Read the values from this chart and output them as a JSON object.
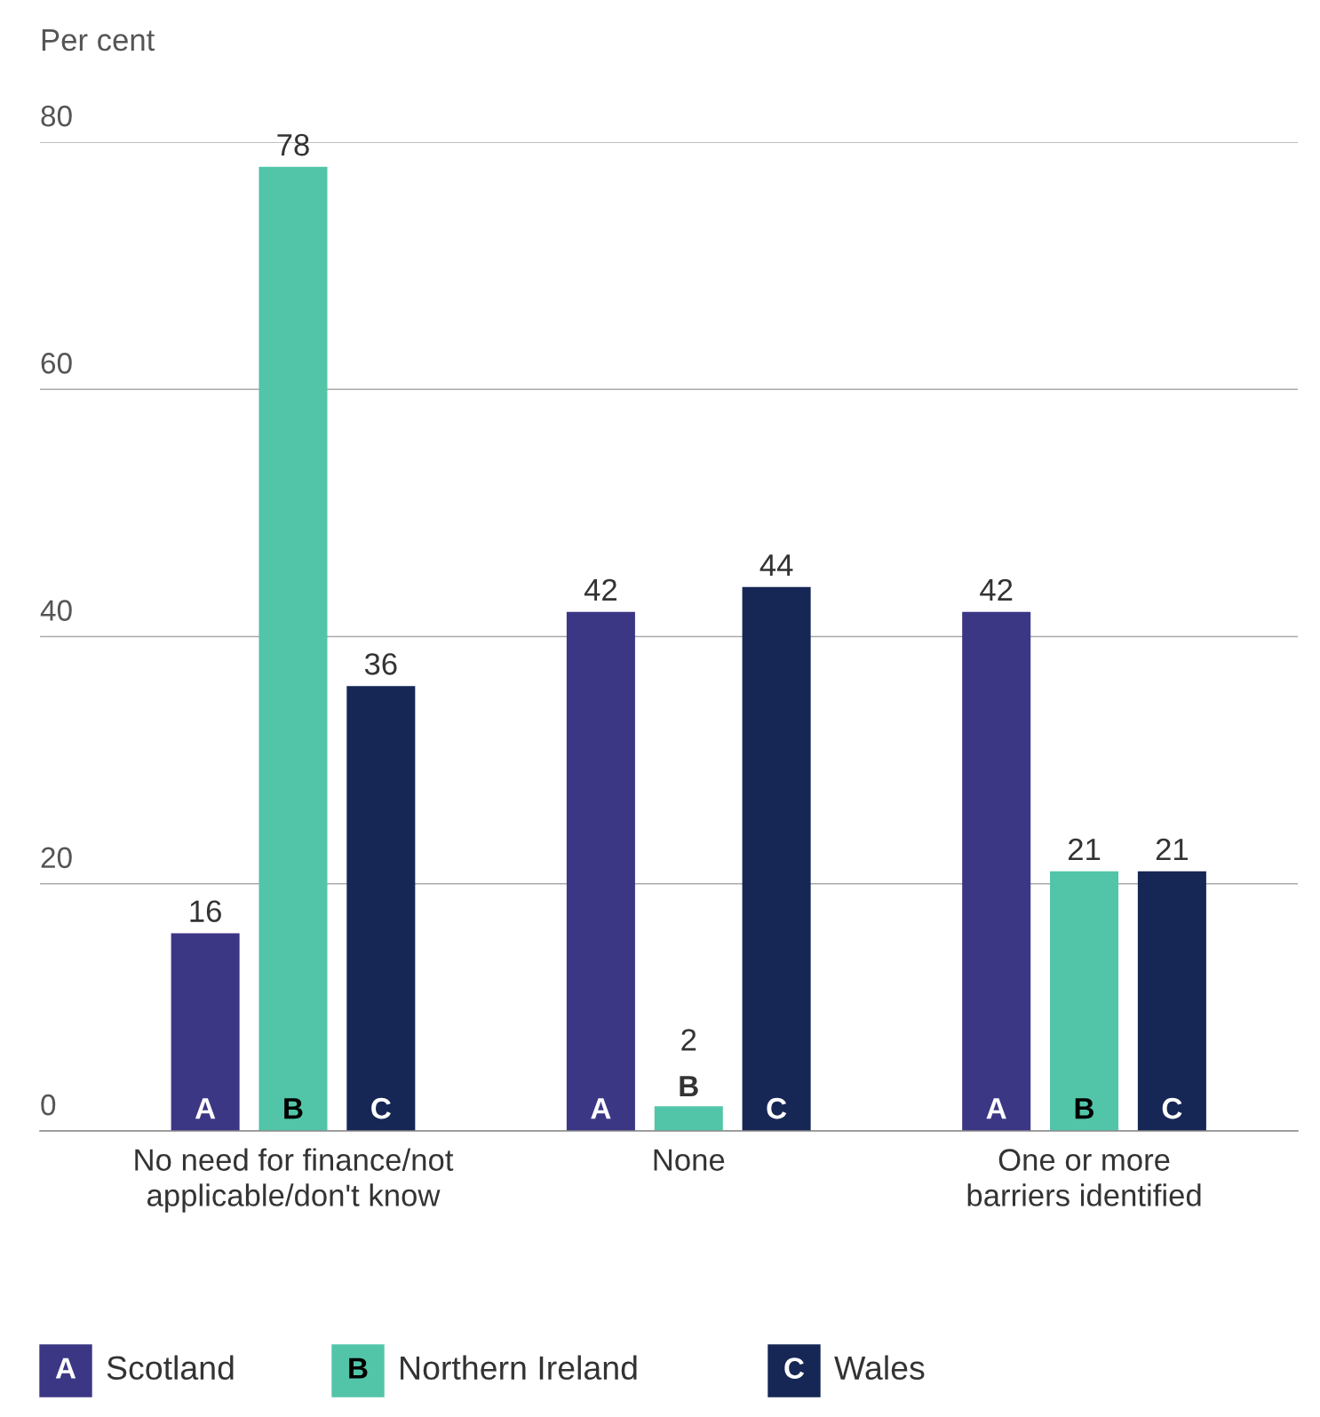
{
  "chart_data": {
    "type": "bar",
    "ylabel": "Per cent",
    "categories": [
      "No need for finance/not\napplicable/don't know",
      "None",
      "One or more\nbarriers identified"
    ],
    "series": [
      {
        "name": "Scotland",
        "color": "#3c3784",
        "values": [
          16,
          42,
          42
        ]
      },
      {
        "name": "Northern Ireland",
        "color": "#52c5a8",
        "values": [
          78,
          2,
          21
        ]
      },
      {
        "name": "Wales",
        "color": "#162755",
        "values": [
          36,
          44,
          21
        ]
      }
    ],
    "annotations": [
      "A",
      "B",
      "C"
    ],
    "ylim": [
      0,
      80
    ],
    "yticks": [
      0,
      20,
      40,
      60,
      80
    ],
    "grid": "y",
    "data_labels": true,
    "legend": "bottom"
  }
}
